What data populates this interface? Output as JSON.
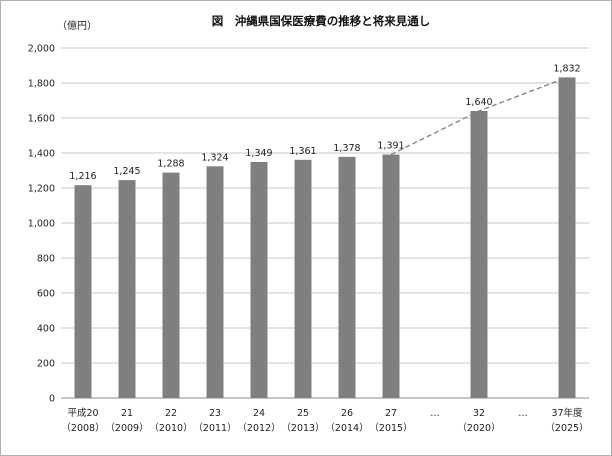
{
  "chart_data": {
    "type": "bar",
    "title": "図　沖縄県国保医療費の推移と将来見通し",
    "ylabel": "（億円）",
    "ylim": [
      0,
      2000
    ],
    "yticks": [
      0,
      200,
      400,
      600,
      800,
      1000,
      1200,
      1400,
      1600,
      1800,
      2000
    ],
    "ytick_labels": [
      "0",
      "200",
      "400",
      "600",
      "800",
      "1,000",
      "1,200",
      "1,400",
      "1,600",
      "1,800",
      "2,000"
    ],
    "grid": true,
    "legend": "none",
    "bar_color": "#7f7f7f",
    "trend_line_color": "#7f7f7f",
    "categories": [
      {
        "label": "平成20",
        "sub": "（2008）",
        "value": 1216,
        "value_label": "1,216"
      },
      {
        "label": "21",
        "sub": "（2009）",
        "value": 1245,
        "value_label": "1,245"
      },
      {
        "label": "22",
        "sub": "（2010）",
        "value": 1288,
        "value_label": "1,288"
      },
      {
        "label": "23",
        "sub": "（2011）",
        "value": 1324,
        "value_label": "1,324"
      },
      {
        "label": "24",
        "sub": "（2012）",
        "value": 1349,
        "value_label": "1,349"
      },
      {
        "label": "25",
        "sub": "（2013）",
        "value": 1361,
        "value_label": "1,361"
      },
      {
        "label": "26",
        "sub": "（2014）",
        "value": 1378,
        "value_label": "1,378"
      },
      {
        "label": "27",
        "sub": "（2015）",
        "value": 1391,
        "value_label": "1,391"
      },
      {
        "label": "…",
        "sub": "",
        "value": null,
        "value_label": ""
      },
      {
        "label": "32",
        "sub": "（2020）",
        "value": 1640,
        "value_label": "1,640"
      },
      {
        "label": "…",
        "sub": "",
        "value": null,
        "value_label": ""
      },
      {
        "label": "37年度",
        "sub": "（2025）",
        "value": 1832,
        "value_label": "1,832"
      }
    ],
    "dashed_projection": [
      7,
      9,
      11
    ]
  }
}
